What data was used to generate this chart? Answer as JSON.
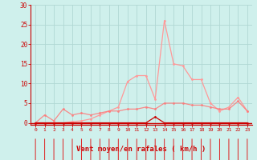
{
  "x": [
    0,
    1,
    2,
    3,
    4,
    5,
    6,
    7,
    8,
    9,
    10,
    11,
    12,
    13,
    14,
    15,
    16,
    17,
    18,
    19,
    20,
    21,
    22,
    23
  ],
  "line1": [
    0,
    0,
    0,
    0,
    0.3,
    0.5,
    1,
    2,
    3,
    4,
    10.5,
    12,
    12,
    6,
    26,
    15,
    14.5,
    11,
    11,
    5,
    3,
    4,
    6.5,
    3
  ],
  "line2": [
    0,
    2,
    0.5,
    3.5,
    2,
    2.5,
    2,
    2.5,
    3,
    3,
    3.5,
    3.5,
    4,
    3.5,
    5,
    5,
    5,
    4.5,
    4.5,
    4,
    3.5,
    3.5,
    5.5,
    3
  ],
  "line3": [
    0,
    0,
    0,
    0,
    0,
    0,
    0,
    0,
    0,
    0,
    0,
    0,
    0,
    1.5,
    0,
    0,
    0,
    0,
    0,
    0,
    0,
    0,
    0,
    0
  ],
  "bg_color": "#cff0ec",
  "grid_color": "#b0d8d4",
  "line1_color": "#ff9999",
  "line2_color": "#ff7777",
  "line3_color": "#cc0000",
  "arrow_color": "#dd2222",
  "xlabel": "Vent moyen/en rafales ( km/h )",
  "ylim": [
    0,
    30
  ],
  "xlim": [
    -0.5,
    23.5
  ],
  "yticks": [
    0,
    5,
    10,
    15,
    20,
    25,
    30
  ]
}
